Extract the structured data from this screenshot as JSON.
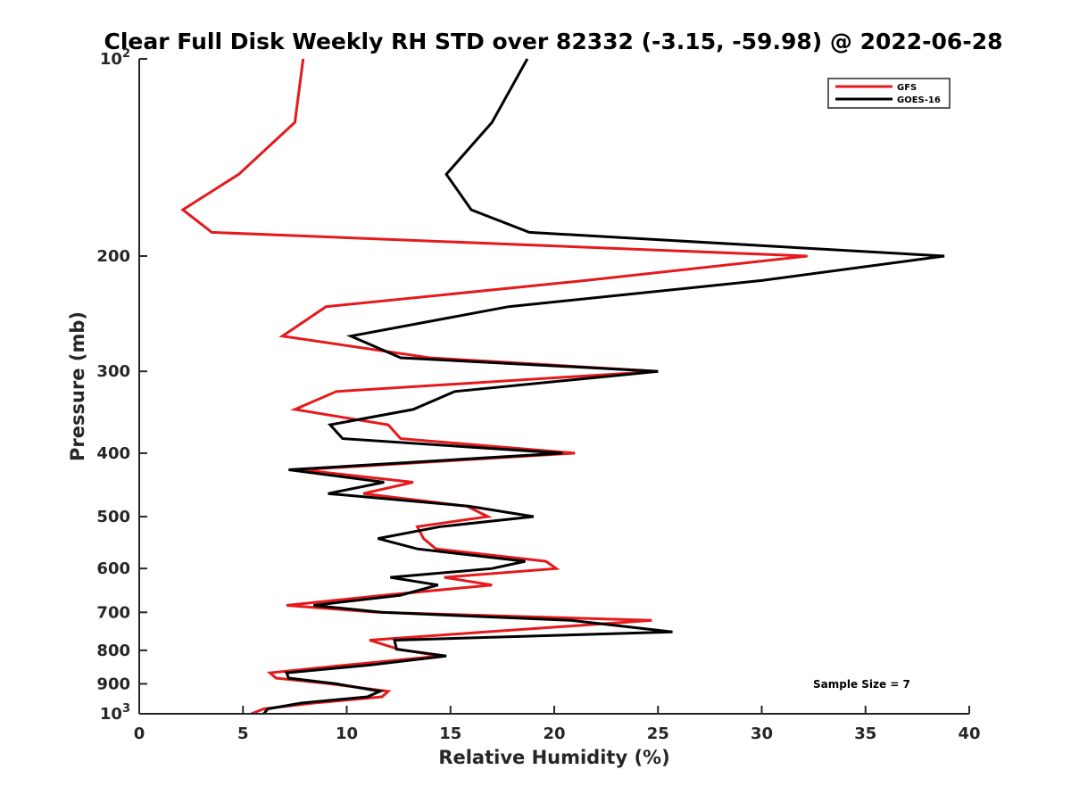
{
  "chart_data": {
    "type": "line",
    "title": "Clear Full Disk Weekly RH STD over 82332 (-3.15, -59.98) @ 2022-06-28",
    "xlabel": "Relative Humidity (%)",
    "ylabel": "Pressure (mb)",
    "xlim": [
      0,
      40
    ],
    "ylim": [
      100,
      1000
    ],
    "y_scale": "log",
    "y_reversed": true,
    "grid": false,
    "legend_position": "top-right",
    "x_ticks": [
      "0",
      "5",
      "10",
      "15",
      "20",
      "25",
      "30",
      "35",
      "40"
    ],
    "y_ticks": [
      {
        "value": 100,
        "label": "10",
        "sup": "2"
      },
      {
        "value": 200,
        "label": "200"
      },
      {
        "value": 300,
        "label": "300"
      },
      {
        "value": 400,
        "label": "400"
      },
      {
        "value": 500,
        "label": "500"
      },
      {
        "value": 600,
        "label": "600"
      },
      {
        "value": 700,
        "label": "700"
      },
      {
        "value": 800,
        "label": "800"
      },
      {
        "value": 900,
        "label": "900"
      },
      {
        "value": 1000,
        "label": "10",
        "sup": "3"
      }
    ],
    "series": [
      {
        "name": "GFS",
        "color": "#e41a1c",
        "points": [
          [
            7.9,
            100
          ],
          [
            7.5,
            125
          ],
          [
            4.8,
            150
          ],
          [
            2.1,
            170
          ],
          [
            3.5,
            184
          ],
          [
            32.2,
            200
          ],
          [
            21.5,
            218
          ],
          [
            9.0,
            239
          ],
          [
            6.9,
            265
          ],
          [
            14.0,
            286
          ],
          [
            25.0,
            300
          ],
          [
            9.5,
            322
          ],
          [
            7.5,
            343
          ],
          [
            12.0,
            362
          ],
          [
            12.6,
            380
          ],
          [
            21.0,
            400
          ],
          [
            7.8,
            424
          ],
          [
            13.2,
            443
          ],
          [
            10.8,
            461
          ],
          [
            15.8,
            482
          ],
          [
            16.8,
            500
          ],
          [
            13.4,
            518
          ],
          [
            13.7,
            540
          ],
          [
            14.3,
            560
          ],
          [
            19.6,
            585
          ],
          [
            20.1,
            600
          ],
          [
            14.7,
            619
          ],
          [
            17.0,
            636
          ],
          [
            11.8,
            659
          ],
          [
            7.1,
            683
          ],
          [
            11.5,
            700
          ],
          [
            24.7,
            720
          ],
          [
            16.7,
            750
          ],
          [
            11.1,
            772
          ],
          [
            12.5,
            797
          ],
          [
            14.5,
            816
          ],
          [
            9.9,
            843
          ],
          [
            6.3,
            866
          ],
          [
            6.6,
            882
          ],
          [
            9.2,
            900
          ],
          [
            12.0,
            924
          ],
          [
            11.7,
            942
          ],
          [
            8.4,
            963
          ],
          [
            6.0,
            983
          ],
          [
            5.4,
            1000
          ]
        ]
      },
      {
        "name": "GOES-16",
        "color": "#000000",
        "points": [
          [
            18.7,
            100
          ],
          [
            17.0,
            125
          ],
          [
            14.8,
            150
          ],
          [
            16.0,
            170
          ],
          [
            18.8,
            184
          ],
          [
            38.8,
            200
          ],
          [
            30.0,
            218
          ],
          [
            17.8,
            239
          ],
          [
            10.2,
            265
          ],
          [
            12.6,
            286
          ],
          [
            25.0,
            300
          ],
          [
            15.2,
            322
          ],
          [
            13.2,
            343
          ],
          [
            9.2,
            362
          ],
          [
            9.8,
            380
          ],
          [
            20.4,
            400
          ],
          [
            7.2,
            424
          ],
          [
            11.8,
            443
          ],
          [
            9.1,
            461
          ],
          [
            15.9,
            482
          ],
          [
            19.0,
            500
          ],
          [
            14.5,
            518
          ],
          [
            11.5,
            540
          ],
          [
            13.4,
            560
          ],
          [
            18.6,
            585
          ],
          [
            17.0,
            600
          ],
          [
            12.1,
            619
          ],
          [
            14.4,
            636
          ],
          [
            12.6,
            659
          ],
          [
            8.4,
            683
          ],
          [
            11.7,
            700
          ],
          [
            20.8,
            720
          ],
          [
            25.7,
            750
          ],
          [
            12.3,
            772
          ],
          [
            12.4,
            797
          ],
          [
            14.8,
            816
          ],
          [
            11.0,
            843
          ],
          [
            7.1,
            866
          ],
          [
            7.2,
            882
          ],
          [
            9.5,
            900
          ],
          [
            11.6,
            924
          ],
          [
            11.0,
            942
          ],
          [
            7.8,
            963
          ],
          [
            6.2,
            983
          ],
          [
            6.0,
            1000
          ]
        ]
      }
    ],
    "annotations": [
      "Sample Size = 7"
    ]
  }
}
